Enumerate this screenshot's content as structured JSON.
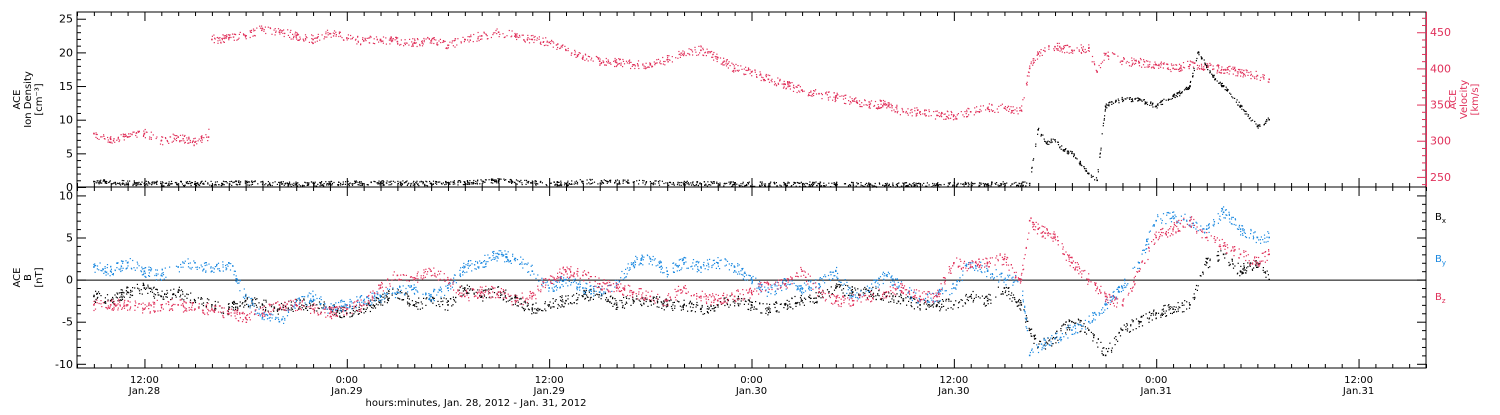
{
  "colors": {
    "black": "#000000",
    "pink": "#e0305a",
    "blue": "#1a88e0",
    "axis": "#000000"
  },
  "xaxis": {
    "start_hours": 8,
    "end_hours": 88,
    "ticks": [
      {
        "h": 12,
        "top": "12:00",
        "bottom": "Jan.28"
      },
      {
        "h": 24,
        "top": "0:00",
        "bottom": "Jan.29"
      },
      {
        "h": 36,
        "top": "12:00",
        "bottom": "Jan.29"
      },
      {
        "h": 48,
        "top": "0:00",
        "bottom": "Jan.30"
      },
      {
        "h": 60,
        "top": "12:00",
        "bottom": "Jan.30"
      },
      {
        "h": 72,
        "top": "0:00",
        "bottom": "Jan.31"
      },
      {
        "h": 84,
        "top": "12:00",
        "bottom": "Jan.31"
      }
    ],
    "label": "hours:minutes, Jan. 28, 2012 - Jan. 31, 2012"
  },
  "chart_data": [
    {
      "type": "scatter",
      "panel": "top",
      "left_axis": {
        "label_lines": [
          "ACE",
          "Ion Density",
          "[cm⁻³]"
        ],
        "ylim": [
          0,
          26
        ],
        "ticks": [
          0,
          5,
          10,
          15,
          20,
          25
        ]
      },
      "right_axis": {
        "label_lines": [
          "ACE",
          "Velocity",
          "[km/s]"
        ],
        "ylim": [
          236,
          478
        ],
        "ticks": [
          250,
          300,
          350,
          400,
          450
        ]
      },
      "series": [
        {
          "color": "black",
          "axis": "left",
          "x": [
            9,
            12,
            15,
            18,
            21,
            23,
            26,
            29,
            31,
            33,
            35,
            37,
            38,
            41,
            44,
            47,
            50,
            53,
            56,
            59,
            62,
            64.5,
            65,
            65.5,
            66,
            66.5,
            67,
            67.5,
            68,
            68.5,
            69,
            70,
            71,
            72,
            73,
            73.5,
            74,
            74.5,
            75,
            75.5,
            76,
            77,
            78,
            78.7
          ],
          "y": [
            0.8,
            0.5,
            0.5,
            0.6,
            0.4,
            0.5,
            0.6,
            0.5,
            0.7,
            0.9,
            0.6,
            0.5,
            0.8,
            0.7,
            0.5,
            0.4,
            0.4,
            0.4,
            0.3,
            0.3,
            0.4,
            0.5,
            8.5,
            6.5,
            7,
            5.5,
            5,
            3.5,
            2,
            1,
            12,
            13,
            13,
            12,
            13.5,
            14,
            15,
            20,
            18,
            16,
            15,
            12,
            9,
            10
          ]
        },
        {
          "color": "pink",
          "axis": "right",
          "x": [
            9,
            10,
            11,
            12,
            13,
            14,
            15,
            15.8,
            16,
            17,
            18,
            19,
            20,
            21,
            22,
            23,
            24,
            25,
            26,
            27,
            28,
            29,
            30,
            31,
            32,
            33,
            34,
            35,
            36,
            37,
            38,
            39,
            40,
            41,
            42,
            43,
            44,
            45,
            46,
            47,
            48,
            49,
            50,
            51,
            52,
            53,
            54,
            55,
            56,
            57,
            58,
            59,
            60,
            61,
            62,
            63,
            64,
            64.5,
            65,
            66,
            67,
            68,
            68.5,
            69,
            70,
            71,
            72,
            73,
            74,
            75,
            76,
            77,
            78,
            78.7
          ],
          "y": [
            310,
            302,
            305,
            310,
            300,
            305,
            298,
            305,
            440,
            442,
            445,
            455,
            450,
            445,
            440,
            448,
            442,
            438,
            440,
            437,
            435,
            438,
            432,
            440,
            445,
            450,
            445,
            440,
            436,
            425,
            415,
            410,
            408,
            405,
            405,
            412,
            420,
            425,
            415,
            400,
            395,
            385,
            378,
            370,
            365,
            360,
            355,
            350,
            350,
            340,
            340,
            335,
            335,
            340,
            345,
            345,
            342,
            400,
            420,
            430,
            425,
            428,
            395,
            420,
            410,
            408,
            405,
            400,
            405,
            402,
            398,
            395,
            390,
            385
          ]
        }
      ]
    },
    {
      "type": "scatter",
      "panel": "bottom",
      "left_axis": {
        "label_lines": [
          "ACE",
          "B",
          "[nT]"
        ],
        "ylim": [
          -10.5,
          11
        ],
        "ticks": [
          -10,
          -5,
          0,
          5,
          10
        ]
      },
      "zero_line": true,
      "legend": [
        {
          "text": "B",
          "sub": "x",
          "color": "black"
        },
        {
          "text": "B",
          "sub": "y",
          "color": "blue"
        },
        {
          "text": "B",
          "sub": "z",
          "color": "pink"
        }
      ],
      "series": [
        {
          "name": "Bx",
          "color": "black",
          "x": [
            9,
            10,
            11,
            12,
            13,
            14,
            15,
            16,
            17,
            18,
            19,
            20,
            21,
            22,
            23,
            24,
            25,
            26,
            27,
            28,
            29,
            30,
            31,
            32,
            33,
            34,
            35,
            36,
            37,
            38,
            39,
            40,
            41,
            42,
            43,
            44,
            45,
            46,
            47,
            48,
            49,
            50,
            51,
            52,
            53,
            54,
            55,
            56,
            57,
            58,
            59,
            60,
            61,
            62,
            63,
            64,
            64.5,
            65,
            66,
            67,
            68,
            69,
            70,
            71,
            72,
            73,
            74,
            75,
            76,
            77,
            78,
            78.7
          ],
          "y": [
            -2,
            -2.5,
            -1.5,
            -1,
            -2,
            -1.5,
            -2.5,
            -3,
            -3.5,
            -2.5,
            -3,
            -3.5,
            -3,
            -3,
            -3.5,
            -4,
            -3.5,
            -2.5,
            -1.5,
            -3,
            -2.5,
            -3,
            -1,
            -2,
            -1.5,
            -2.5,
            -3.5,
            -3,
            -2.5,
            -2,
            -1.5,
            -3,
            -2.5,
            -2.5,
            -3,
            -3,
            -3.5,
            -3,
            -2.5,
            -3,
            -3.5,
            -3,
            -2.5,
            -2,
            -1,
            -1.5,
            -1.5,
            -2,
            -2.5,
            -3,
            -3,
            -3,
            -2,
            -2.5,
            -1,
            -3,
            -6,
            -8,
            -7,
            -5,
            -6,
            -9,
            -6,
            -5,
            -4,
            -3.5,
            -3,
            2,
            3,
            1,
            2,
            0
          ]
        },
        {
          "name": "By",
          "color": "blue",
          "x": [
            9,
            10,
            11,
            12,
            13,
            14,
            15,
            16,
            17,
            18,
            19,
            20,
            21,
            22,
            23,
            24,
            25,
            26,
            27,
            28,
            29,
            30,
            31,
            32,
            33,
            34,
            35,
            36,
            37,
            38,
            39,
            40,
            41,
            42,
            43,
            44,
            45,
            46,
            47,
            48,
            49,
            50,
            51,
            52,
            53,
            54,
            55,
            56,
            57,
            58,
            59,
            60,
            61,
            62,
            63,
            64,
            64.5,
            65,
            66,
            67,
            68,
            69,
            70,
            71,
            72,
            73,
            74,
            75,
            76,
            77,
            78,
            78.7
          ],
          "y": [
            1.5,
            1,
            2,
            1,
            0.5,
            1.5,
            2,
            1,
            2,
            -2,
            -4.5,
            -5,
            -3,
            -2,
            -3.5,
            -3,
            -2.5,
            -2,
            -1.5,
            -1,
            -2,
            -1,
            1.5,
            2,
            3,
            2.5,
            1,
            -1,
            0,
            -1,
            -1.5,
            -0.5,
            2,
            2.5,
            1,
            2,
            1.5,
            2,
            1.5,
            0,
            -1.5,
            -0.5,
            -1,
            -0.5,
            1,
            -2,
            -1,
            0.5,
            -1,
            -2.5,
            -2,
            -1,
            2,
            1,
            0,
            0,
            -9,
            -8,
            -7,
            -6,
            -5,
            -3,
            -1,
            2,
            7,
            7.5,
            7,
            6,
            8,
            6,
            5,
            5
          ]
        },
        {
          "name": "Bz",
          "color": "pink",
          "x": [
            9,
            10,
            11,
            12,
            13,
            14,
            15,
            16,
            17,
            18,
            19,
            20,
            21,
            22,
            23,
            24,
            25,
            26,
            27,
            28,
            29,
            30,
            31,
            32,
            33,
            34,
            35,
            36,
            37,
            38,
            39,
            40,
            41,
            42,
            43,
            44,
            45,
            46,
            47,
            48,
            49,
            50,
            51,
            52,
            53,
            54,
            55,
            56,
            57,
            58,
            59,
            60,
            61,
            62,
            63,
            64,
            64.5,
            65,
            66,
            67,
            68,
            69,
            70,
            71,
            72,
            73,
            74,
            75,
            76,
            77,
            78,
            78.7
          ],
          "y": [
            -3,
            -3,
            -3,
            -3.5,
            -3,
            -3,
            -3.5,
            -3.5,
            -4,
            -4.5,
            -4,
            -3,
            -3,
            -3.5,
            -4,
            -3.5,
            -3,
            -1,
            0.5,
            0,
            1,
            0,
            -2,
            -1.5,
            -1.5,
            -2.5,
            -2,
            0,
            1,
            0.5,
            -0.5,
            -1,
            -1.5,
            -2,
            -2.5,
            -1,
            -2,
            -2.5,
            -2,
            -1.5,
            -0.5,
            -0.5,
            1,
            -1.5,
            -2.5,
            -2.5,
            -2,
            -1.5,
            -1,
            -2,
            -2,
            2,
            1.5,
            2,
            2.5,
            0,
            7,
            6,
            5,
            2,
            0,
            -2,
            -3,
            1,
            5,
            6,
            7,
            5,
            4,
            3,
            2,
            3
          ]
        }
      ]
    }
  ]
}
